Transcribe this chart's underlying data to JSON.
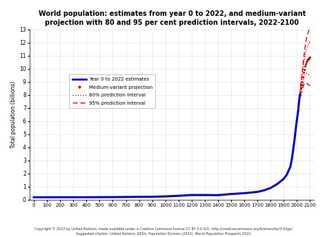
{
  "title": "World population: estimates from year 0 to 2022, and medium-variant\nprojection with 80 and 95 per cent prediction intervals, 2022-2100",
  "ylabel": "Total population (billions)",
  "xlabel_ticks": [
    0,
    100,
    200,
    300,
    400,
    500,
    600,
    700,
    800,
    900,
    1000,
    1100,
    1200,
    1300,
    1400,
    1500,
    1600,
    1700,
    1800,
    1900,
    2000,
    2100
  ],
  "ylim": [
    0,
    13
  ],
  "xlim": [
    -30,
    2130
  ],
  "copyright_text": "Copyright © 2022 by United Nations, made available under a Creative Commons license CC BY 3.0 IGO: http://creativecommons.org/licenses/by/3.0/igo/\nSuggested citation: United Nations, DESA, Population Division (2022). World Population Prospects 2022.",
  "background_color": "#ffffff",
  "grid_color": "#c8c8c8",
  "line_color_historical": "#0000cc",
  "dot_color_medium": "#cc0000",
  "dot_color_80": "#cc0000",
  "dash_color_95": "#cc0000",
  "legend_entries": [
    "Year 0 to 2022 estimates",
    "Medium-variant projection",
    "80% prediction interval",
    "95% prediction interval"
  ],
  "hist_years": [
    0,
    100,
    200,
    300,
    400,
    500,
    600,
    700,
    800,
    900,
    1000,
    1100,
    1200,
    1300,
    1400,
    1500,
    1600,
    1700,
    1750,
    1800,
    1850,
    1900,
    1910,
    1920,
    1930,
    1940,
    1950,
    1955,
    1960,
    1965,
    1970,
    1975,
    1980,
    1985,
    1990,
    1995,
    2000,
    2005,
    2010,
    2015,
    2020,
    2022
  ],
  "hist_pop": [
    0.188,
    0.188,
    0.19,
    0.19,
    0.19,
    0.195,
    0.2,
    0.21,
    0.22,
    0.226,
    0.254,
    0.301,
    0.36,
    0.36,
    0.35,
    0.438,
    0.5,
    0.6,
    0.72,
    0.9,
    1.2,
    1.6,
    1.75,
    1.86,
    2.07,
    2.3,
    2.5,
    2.77,
    3.0,
    3.34,
    3.7,
    4.07,
    4.43,
    4.83,
    5.31,
    5.72,
    6.09,
    6.46,
    6.84,
    7.38,
    7.795,
    8.0
  ],
  "proj_years": [
    2022,
    2025,
    2030,
    2035,
    2040,
    2045,
    2050,
    2055,
    2060,
    2065,
    2070,
    2075,
    2080,
    2085,
    2090,
    2095,
    2100
  ],
  "proj_pop": [
    8.0,
    8.18,
    8.5,
    8.77,
    9.0,
    9.37,
    9.7,
    9.95,
    10.2,
    10.35,
    10.5,
    10.6,
    10.7,
    10.75,
    10.8,
    10.85,
    10.9
  ],
  "p80_high": [
    8.0,
    8.25,
    8.72,
    9.1,
    9.45,
    9.85,
    10.2,
    10.55,
    10.9,
    11.15,
    11.4,
    11.55,
    11.7,
    11.8,
    11.9,
    12.0,
    12.1
  ],
  "p80_low": [
    8.0,
    8.1,
    8.3,
    8.48,
    8.6,
    8.9,
    9.2,
    9.38,
    9.5,
    9.58,
    9.65,
    9.65,
    9.6,
    9.6,
    9.55,
    9.55,
    9.5
  ],
  "p95_high": [
    8.0,
    8.32,
    8.9,
    9.3,
    9.7,
    10.2,
    10.7,
    11.1,
    11.5,
    11.85,
    12.2,
    12.4,
    12.6,
    12.75,
    12.9,
    13.0,
    13.1
  ],
  "p95_low": [
    8.0,
    8.02,
    8.1,
    8.22,
    8.3,
    8.55,
    8.75,
    8.85,
    8.9,
    8.93,
    8.95,
    8.9,
    8.85,
    8.8,
    8.75,
    8.72,
    8.7
  ]
}
